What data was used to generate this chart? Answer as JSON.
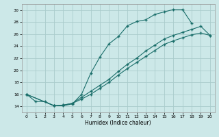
{
  "xlabel": "Humidex (Indice chaleur)",
  "ylabel": "",
  "bg_color": "#cce8e8",
  "grid_color": "#aacccc",
  "line_color": "#1a6e6a",
  "xlim": [
    -0.5,
    20.5
  ],
  "ylim": [
    13.0,
    31.0
  ],
  "xticks": [
    0,
    1,
    2,
    3,
    4,
    5,
    6,
    7,
    8,
    9,
    10,
    11,
    12,
    13,
    14,
    15,
    16,
    17,
    18,
    19,
    20
  ],
  "yticks": [
    14,
    16,
    18,
    20,
    22,
    24,
    26,
    28,
    30
  ],
  "line1_x": [
    0,
    1,
    2,
    3,
    4,
    5,
    6,
    7,
    8,
    9,
    10,
    11,
    12,
    13,
    14,
    15,
    16,
    17,
    18
  ],
  "line1_y": [
    16.0,
    14.8,
    14.8,
    14.1,
    14.1,
    14.4,
    16.0,
    19.5,
    22.2,
    24.4,
    25.6,
    27.4,
    28.1,
    28.4,
    29.3,
    29.7,
    30.1,
    30.1,
    27.8
  ],
  "line2_x": [
    0,
    3,
    4,
    5,
    6,
    7,
    8,
    9,
    10,
    11,
    12,
    13,
    14,
    15,
    16,
    17,
    18,
    19,
    20
  ],
  "line2_y": [
    16.0,
    14.1,
    14.2,
    14.5,
    15.5,
    16.5,
    17.5,
    18.5,
    19.8,
    21.0,
    22.0,
    23.2,
    24.2,
    25.2,
    25.8,
    26.3,
    26.8,
    27.3,
    25.8
  ],
  "line3_x": [
    0,
    3,
    4,
    5,
    6,
    7,
    8,
    9,
    10,
    11,
    12,
    13,
    14,
    15,
    16,
    17,
    18,
    19,
    20
  ],
  "line3_y": [
    16.0,
    14.1,
    14.2,
    14.5,
    15.2,
    16.0,
    17.0,
    18.0,
    19.2,
    20.3,
    21.3,
    22.3,
    23.3,
    24.3,
    24.9,
    25.4,
    25.9,
    26.2,
    25.8
  ]
}
